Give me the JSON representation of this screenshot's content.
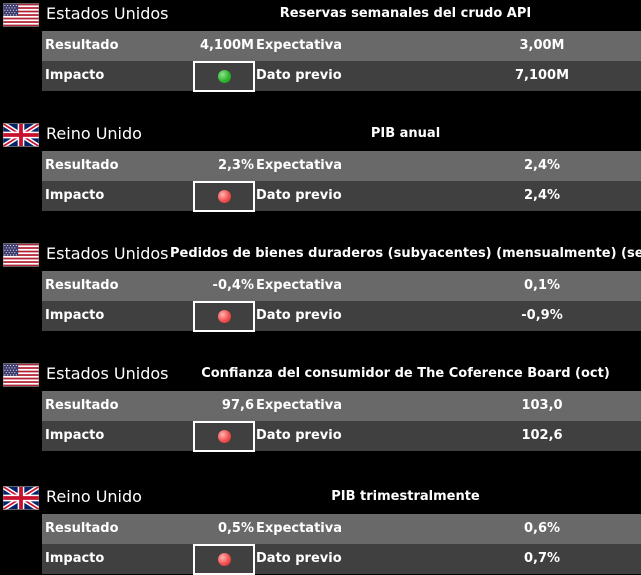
{
  "labels": {
    "result": "Resultado",
    "impact": "Impacto",
    "expectation": "Expectativa",
    "previous": "Dato previo"
  },
  "cards": [
    {
      "country": "Estados Unidos",
      "flag": "us-flag-icon",
      "event": "Reservas semanales del crudo API",
      "result": "4,100M",
      "expectation": "3,00M",
      "previous": "7,100M",
      "impact": "green"
    },
    {
      "country": "Reino Unido",
      "flag": "uk-flag-icon",
      "event": "PIB anual",
      "result": "2,3%",
      "expectation": "2,4%",
      "previous": "2,4%",
      "impact": "red"
    },
    {
      "country": "Estados Unidos",
      "flag": "us-flag-icon",
      "event": "Pedidos de bienes duraderos (subyacentes) (mensualmente) (sep)",
      "result": "-0,4%",
      "expectation": "0,1%",
      "previous": "-0,9%",
      "impact": "red"
    },
    {
      "country": "Estados Unidos",
      "flag": "us-flag-icon",
      "event": "Confianza del consumidor de The Coference Board (oct)",
      "result": "97,6",
      "expectation": "103,0",
      "previous": "102,6",
      "impact": "red"
    },
    {
      "country": "Reino Unido",
      "flag": "uk-flag-icon",
      "event": "PIB trimestralmente",
      "result": "0,5%",
      "expectation": "0,6%",
      "previous": "0,7%",
      "impact": "red"
    }
  ],
  "colors": {
    "positive": "#2fb52f",
    "negative": "#f05050",
    "row_light": "#696969",
    "row_dark": "#404040"
  }
}
